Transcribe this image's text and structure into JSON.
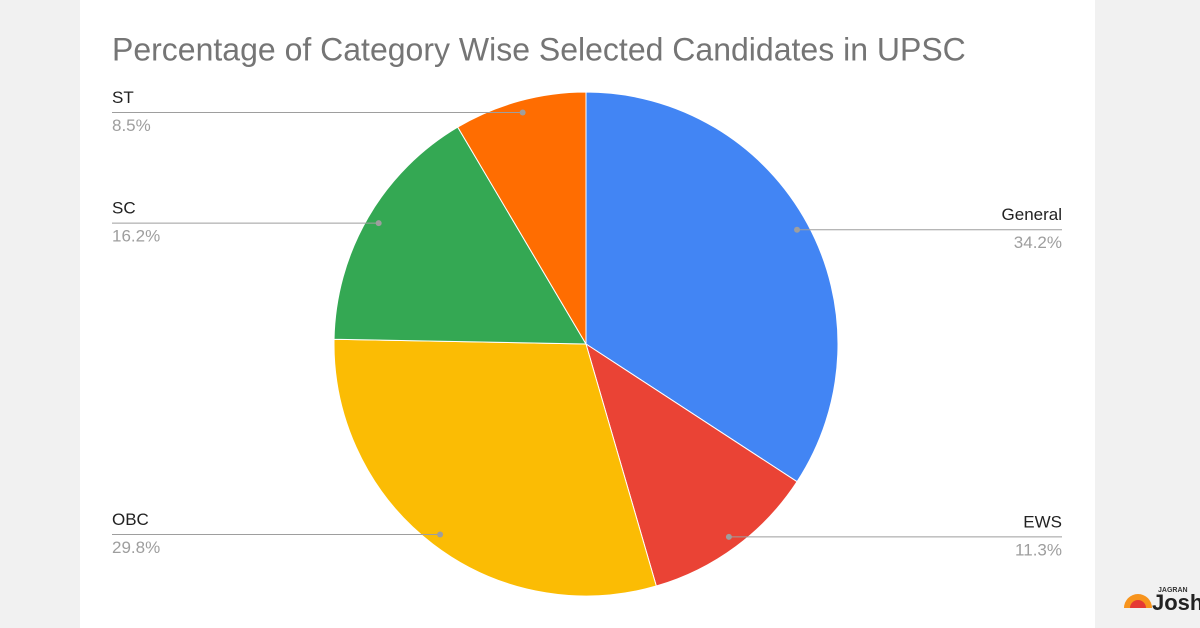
{
  "chart_data": {
    "type": "pie",
    "title": "Percentage of Category Wise Selected Candidates in UPSC",
    "categories": [
      "General",
      "EWS",
      "OBC",
      "SC",
      "ST"
    ],
    "values": [
      34.2,
      11.3,
      29.8,
      16.2,
      8.5
    ],
    "value_labels": [
      "34.2%",
      "11.3%",
      "29.8%",
      "16.2%",
      "8.5%"
    ],
    "colors": [
      "#4285f4",
      "#ea4335",
      "#fbbc04",
      "#34a853",
      "#ff6d01"
    ]
  },
  "logo": {
    "small": "JAGRAN",
    "text": "Josh"
  }
}
